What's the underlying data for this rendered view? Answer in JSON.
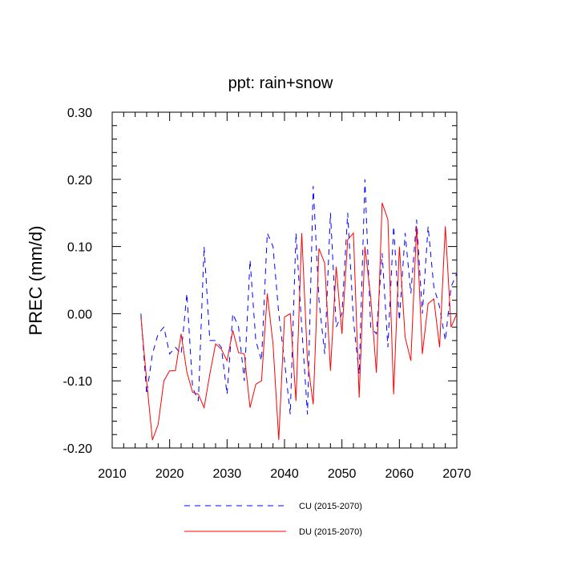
{
  "chart_data": {
    "type": "line",
    "title": "ppt: rain+snow",
    "xlabel": "",
    "ylabel": "PREC  (mm/d)",
    "xlim": [
      2010,
      2070
    ],
    "ylim": [
      -0.2,
      0.3
    ],
    "xticks": [
      2010,
      2020,
      2030,
      2040,
      2050,
      2060,
      2070
    ],
    "xtick_labels": [
      "2010",
      "2020",
      "2030",
      "2040",
      "2050",
      "2060",
      "2070"
    ],
    "yticks": [
      -0.2,
      -0.1,
      0.0,
      0.1,
      0.2,
      0.3
    ],
    "ytick_labels": [
      "-0.20",
      "-0.10",
      "0.00",
      "0.10",
      "0.20",
      "0.30"
    ],
    "grid": false,
    "legend_position": "bottom",
    "x": [
      2015,
      2016,
      2017,
      2018,
      2019,
      2020,
      2021,
      2022,
      2023,
      2024,
      2025,
      2026,
      2027,
      2028,
      2029,
      2030,
      2031,
      2032,
      2033,
      2034,
      2035,
      2036,
      2037,
      2038,
      2039,
      2040,
      2041,
      2042,
      2043,
      2044,
      2045,
      2046,
      2047,
      2048,
      2049,
      2050,
      2051,
      2052,
      2053,
      2054,
      2055,
      2056,
      2057,
      2058,
      2059,
      2060,
      2061,
      2062,
      2063,
      2064,
      2065,
      2066,
      2067,
      2068,
      2069,
      2070
    ],
    "series": [
      {
        "name": "CU (2015-2070)",
        "color": "#0000ff",
        "style": "dashed",
        "values": [
          0.0,
          -0.12,
          -0.06,
          -0.03,
          -0.02,
          -0.06,
          -0.05,
          -0.06,
          0.03,
          -0.11,
          -0.13,
          0.1,
          -0.04,
          -0.04,
          -0.05,
          -0.12,
          0.0,
          -0.02,
          -0.1,
          0.08,
          -0.04,
          -0.07,
          0.12,
          0.1,
          0.0,
          -0.07,
          -0.15,
          0.12,
          -0.02,
          -0.15,
          0.19,
          0.02,
          -0.06,
          0.15,
          -0.02,
          0.0,
          0.15,
          -0.01,
          -0.09,
          0.2,
          -0.02,
          -0.03,
          0.09,
          -0.05,
          0.13,
          -0.01,
          0.12,
          0.03,
          0.14,
          0.0,
          0.13,
          0.04,
          0.01,
          -0.04,
          0.04,
          0.06
        ]
      },
      {
        "name": "DU (2015-2070)",
        "color": "#ff0000",
        "style": "solid",
        "values": [
          -0.005,
          -0.1,
          -0.188,
          -0.165,
          -0.1,
          -0.085,
          -0.085,
          -0.03,
          -0.087,
          -0.117,
          -0.12,
          -0.14,
          -0.09,
          -0.045,
          -0.053,
          -0.07,
          -0.025,
          -0.058,
          -0.06,
          -0.14,
          -0.105,
          -0.1,
          0.03,
          -0.045,
          -0.188,
          -0.005,
          0.0,
          -0.13,
          0.12,
          -0.07,
          -0.135,
          0.097,
          0.075,
          -0.085,
          0.07,
          -0.03,
          0.11,
          0.12,
          -0.125,
          0.1,
          0.025,
          -0.088,
          0.165,
          0.14,
          -0.12,
          0.1,
          -0.035,
          -0.07,
          0.13,
          -0.06,
          0.015,
          0.022,
          -0.05,
          0.13,
          -0.02,
          0.0
        ]
      }
    ]
  }
}
